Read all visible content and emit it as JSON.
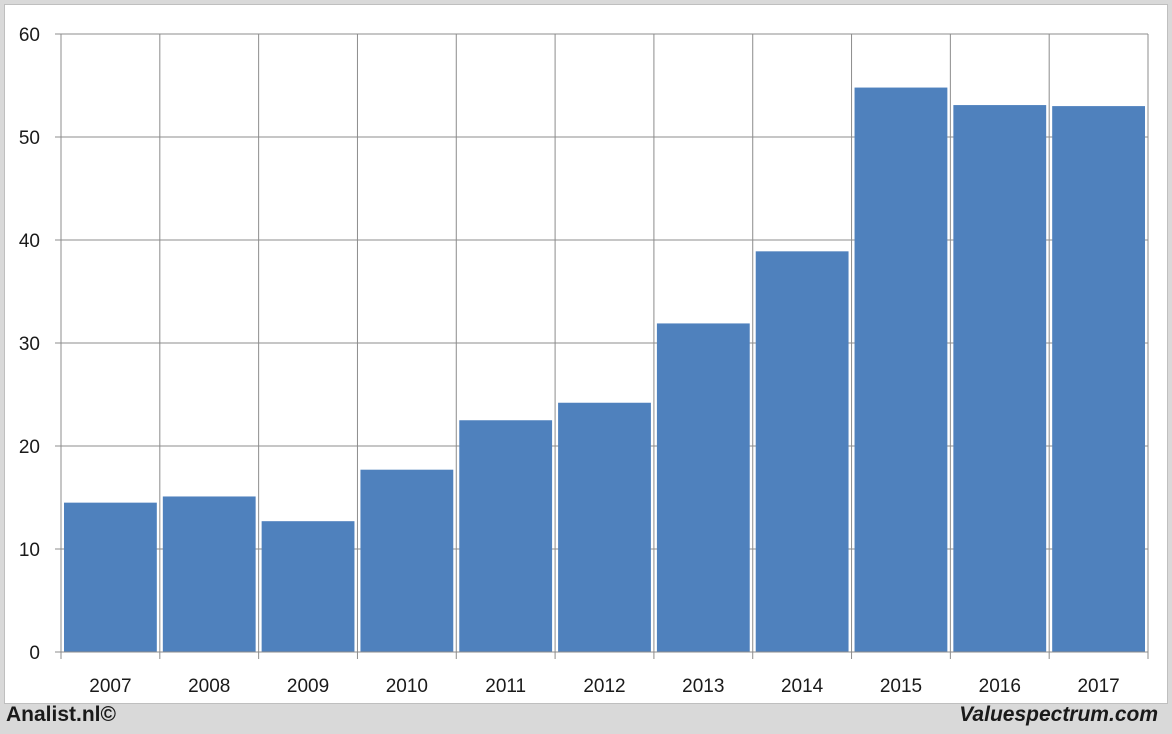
{
  "chart_data": {
    "type": "bar",
    "categories": [
      "2007",
      "2008",
      "2009",
      "2010",
      "2011",
      "2012",
      "2013",
      "2014",
      "2015",
      "2016",
      "2017"
    ],
    "values": [
      14.5,
      15.1,
      12.7,
      17.7,
      22.5,
      24.2,
      31.9,
      38.9,
      54.8,
      53.1,
      53.0
    ],
    "title": "",
    "xlabel": "",
    "ylabel": "",
    "ylim": [
      0,
      60
    ],
    "yticks": [
      0,
      10,
      20,
      30,
      40,
      50,
      60
    ],
    "grid": true,
    "legend": "none",
    "bar_color": "#4f81bd",
    "grid_color": "#8c8c8c"
  },
  "footer": {
    "left_text": "Analist.nl©",
    "right_text": "Valuespectrum.com"
  }
}
